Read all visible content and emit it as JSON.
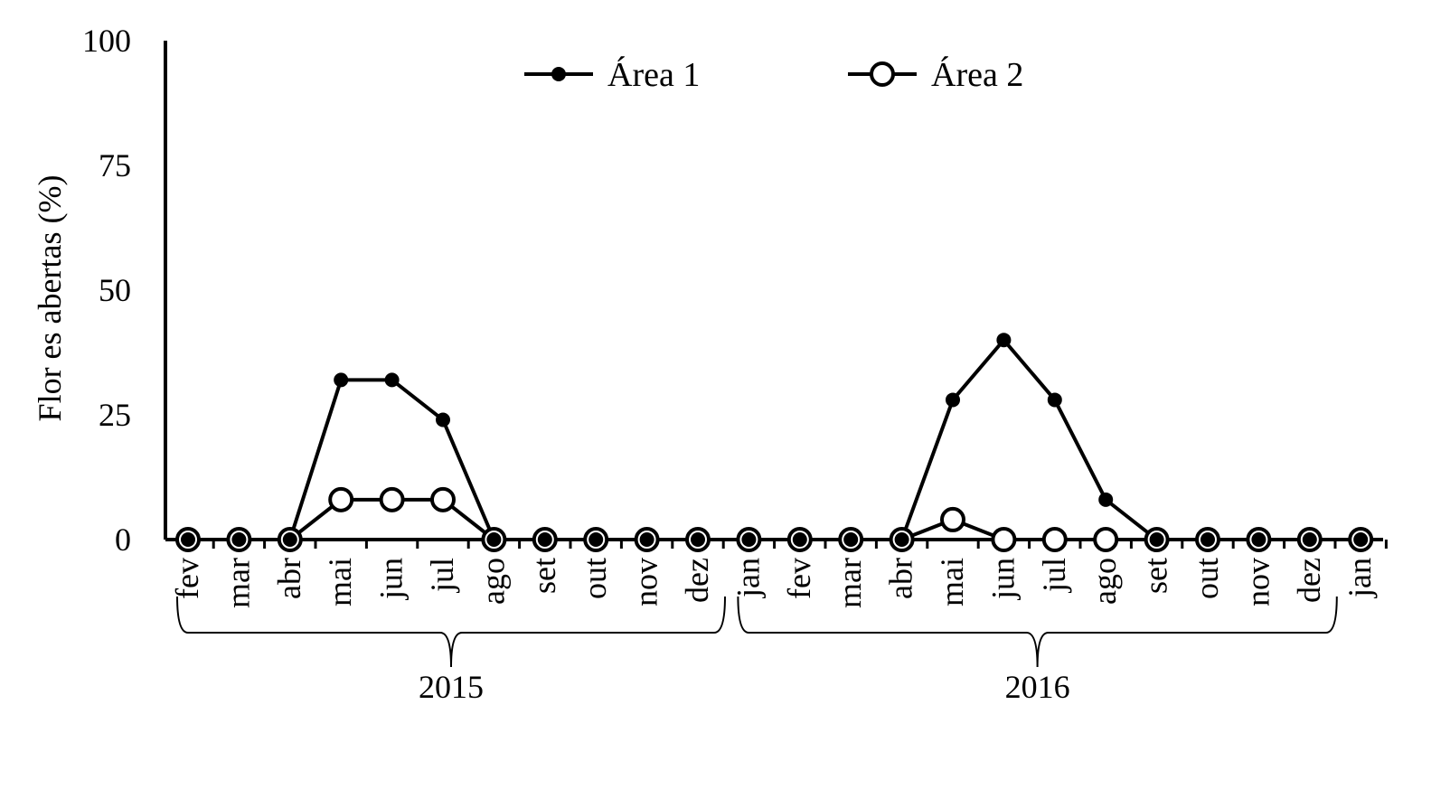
{
  "chart_data": {
    "type": "line",
    "ylabel": "Flor es abertas (%)",
    "ylim": [
      0,
      100
    ],
    "yticks": [
      "0",
      "25",
      "50",
      "75",
      "100"
    ],
    "categories": [
      "fev",
      "mar",
      "abr",
      "mai",
      "jun",
      "jul",
      "ago",
      "set",
      "out",
      "nov",
      "dez",
      "jan",
      "fev",
      "mar",
      "abr",
      "mai",
      "jun",
      "jul",
      "ago",
      "set",
      "out",
      "nov",
      "dez",
      "jan"
    ],
    "year_groups": [
      {
        "label": "2015",
        "from": 0,
        "to": 10
      },
      {
        "label": "2016",
        "from": 11,
        "to": 22
      }
    ],
    "series": [
      {
        "name": "Área 1",
        "marker": "filled-circle",
        "values": [
          0,
          0,
          0,
          32,
          32,
          24,
          0,
          0,
          0,
          0,
          0,
          0,
          0,
          0,
          0,
          28,
          40,
          28,
          8,
          0,
          0,
          0,
          0,
          0
        ]
      },
      {
        "name": "Área 2",
        "marker": "open-circle",
        "values": [
          0,
          0,
          0,
          8,
          8,
          8,
          0,
          0,
          0,
          0,
          0,
          0,
          0,
          0,
          0,
          4,
          0,
          0,
          0,
          0,
          0,
          0,
          0,
          0
        ]
      }
    ],
    "legend_position": "top-center",
    "grid": false,
    "colors": {
      "line": "#000000",
      "background": "#ffffff"
    }
  }
}
